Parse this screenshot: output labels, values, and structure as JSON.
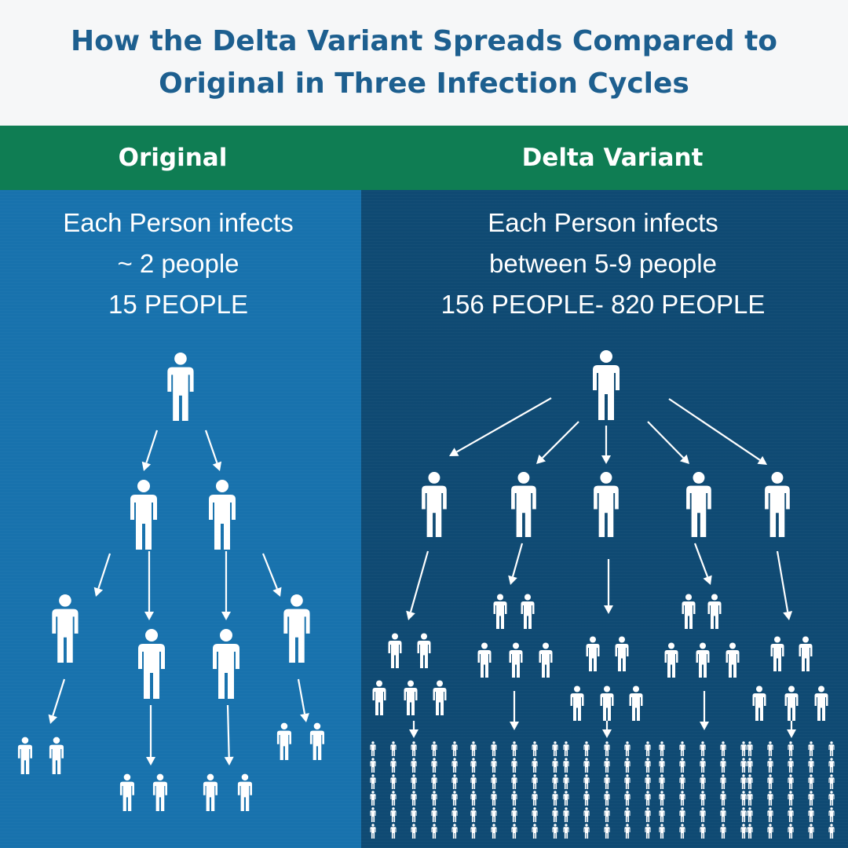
{
  "title": "How the Delta Variant Spreads Compared to Original in Three Infection Cycles",
  "columns": {
    "original": {
      "label": "Original",
      "line1": "Each Person infects",
      "line2": "~ 2 people",
      "line3": "15 PEOPLE"
    },
    "delta": {
      "label": "Delta Variant",
      "line1": "Each Person infects",
      "line2": "between 5-9 people",
      "line3": "156 PEOPLE- 820 PEOPLE"
    }
  },
  "colors": {
    "title": "#1d5f8f",
    "header_band": "#0f7d53",
    "original_panel": "#1872ad",
    "delta_panel": "#0f4a73",
    "figures": "#ffffff"
  },
  "icons": {
    "person": "person-icon",
    "arrow": "arrow-icon"
  }
}
